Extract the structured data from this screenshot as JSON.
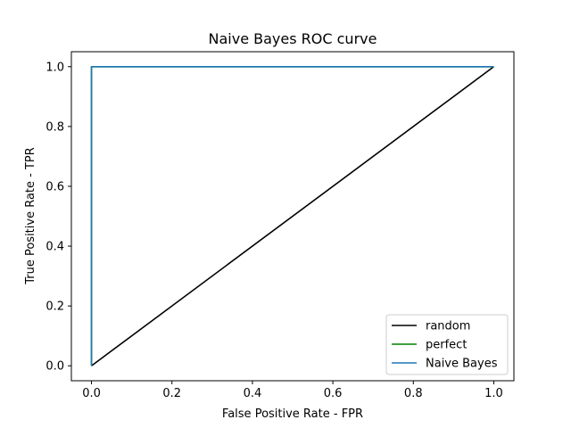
{
  "chart_data": {
    "type": "line",
    "title": "Naive Bayes ROC curve",
    "xlabel": "False Positive Rate - FPR",
    "ylabel": "True Positive Rate - TPR",
    "xlim": [
      -0.05,
      1.05
    ],
    "ylim": [
      -0.05,
      1.05
    ],
    "xticks": [
      0.0,
      0.2,
      0.4,
      0.6,
      0.8,
      1.0
    ],
    "yticks": [
      0.0,
      0.2,
      0.4,
      0.6,
      0.8,
      1.0
    ],
    "xtick_labels": [
      "0.0",
      "0.2",
      "0.4",
      "0.6",
      "0.8",
      "1.0"
    ],
    "ytick_labels": [
      "0.0",
      "0.2",
      "0.4",
      "0.6",
      "0.8",
      "1.0"
    ],
    "grid": false,
    "legend_position": "lower-right",
    "series": [
      {
        "name": "random",
        "color": "#000000",
        "x": [
          0.0,
          1.0
        ],
        "y": [
          0.0,
          1.0
        ]
      },
      {
        "name": "perfect",
        "color": "#008000",
        "x": [
          0.0,
          0.0,
          1.0
        ],
        "y": [
          0.0,
          1.0,
          1.0
        ]
      },
      {
        "name": "Naive Bayes",
        "color": "#1f77b4",
        "x": [
          0.0,
          0.0,
          1.0
        ],
        "y": [
          0.0,
          1.0,
          1.0
        ]
      }
    ]
  }
}
